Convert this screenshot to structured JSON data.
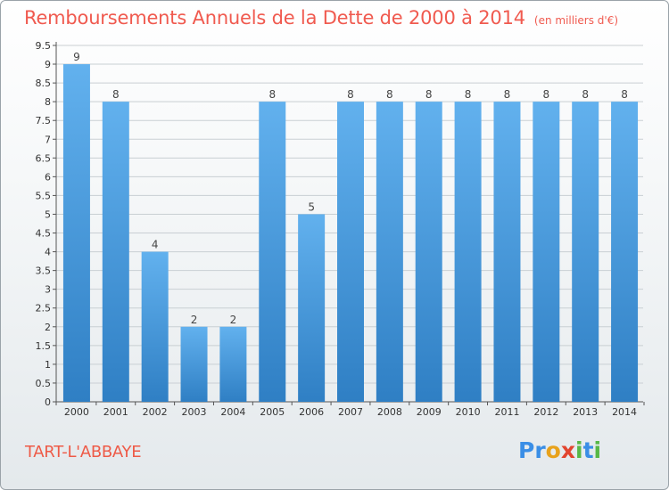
{
  "header": {
    "title": "Remboursements Annuels de la Dette de 2000 à 2014",
    "subtitle": "(en milliers d'€)"
  },
  "footer": {
    "commune": "TART-L'ABBAYE",
    "logo_letters": [
      {
        "ch": "P",
        "color": "#3a8ee6"
      },
      {
        "ch": "r",
        "color": "#3a8ee6"
      },
      {
        "ch": "o",
        "color": "#e8a21c"
      },
      {
        "ch": "x",
        "color": "#e2452f"
      },
      {
        "ch": "i",
        "color": "#58b847"
      },
      {
        "ch": "t",
        "color": "#3a8ee6"
      },
      {
        "ch": "i",
        "color": "#58b847"
      }
    ]
  },
  "colors": {
    "bar_light": "#62b1ee",
    "bar_dark": "#2f7fc4",
    "title": "#f05a4f",
    "grid": "#c9cfd3"
  },
  "chart_data": {
    "type": "bar",
    "categories": [
      "2000",
      "2001",
      "2002",
      "2003",
      "2004",
      "2005",
      "2006",
      "2007",
      "2008",
      "2009",
      "2010",
      "2011",
      "2012",
      "2013",
      "2014"
    ],
    "values": [
      9,
      8,
      4,
      2,
      2,
      8,
      5,
      8,
      8,
      8,
      8,
      8,
      8,
      8,
      8
    ],
    "data_labels": [
      "9",
      "8",
      "4",
      "2",
      "2",
      "8",
      "5",
      "8",
      "8",
      "8",
      "8",
      "8",
      "8",
      "8",
      "8"
    ],
    "y_ticks": [
      "0",
      "0.5",
      "1",
      "1.5",
      "2",
      "2.5",
      "3",
      "3.5",
      "4",
      "4.5",
      "5",
      "5.5",
      "6",
      "6.5",
      "7",
      "7.5",
      "8",
      "8.5",
      "9",
      "9.5"
    ],
    "ylim": [
      0,
      9.5
    ],
    "grid": true,
    "title": "Remboursements Annuels de la Dette de 2000 à 2014"
  }
}
